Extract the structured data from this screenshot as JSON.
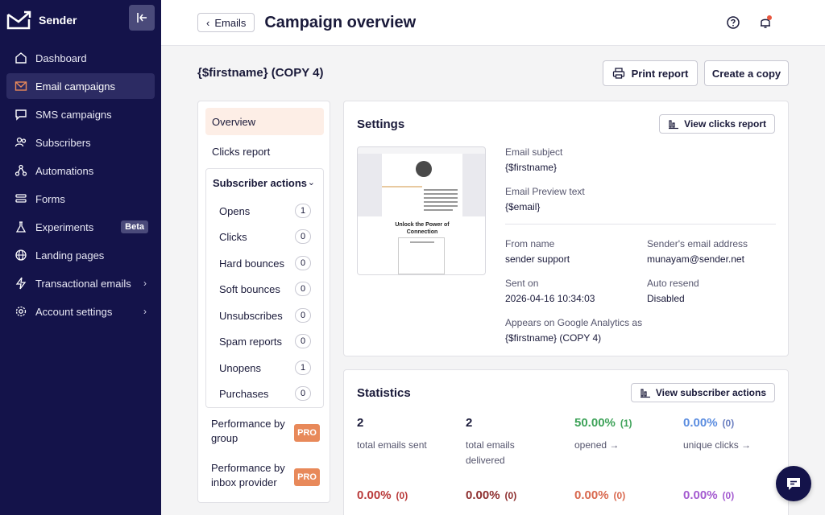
{
  "sidebar": {
    "brand": "Sender",
    "items": [
      {
        "label": "Dashboard",
        "icon": "home-icon"
      },
      {
        "label": "Email campaigns",
        "icon": "mail-icon"
      },
      {
        "label": "SMS campaigns",
        "icon": "chat-icon"
      },
      {
        "label": "Subscribers",
        "icon": "users-icon"
      },
      {
        "label": "Automations",
        "icon": "automation-icon"
      },
      {
        "label": "Forms",
        "icon": "forms-icon"
      },
      {
        "label": "Experiments",
        "icon": "flask-icon",
        "badge": "Beta"
      },
      {
        "label": "Landing pages",
        "icon": "globe-icon"
      },
      {
        "label": "Transactional emails",
        "icon": "bolt-icon"
      },
      {
        "label": "Account settings",
        "icon": "gear-icon"
      }
    ]
  },
  "header": {
    "back_label": "Emails",
    "title": "Campaign overview"
  },
  "campaign": {
    "name": "{$firstname} (COPY 4)",
    "print_label": "Print report",
    "copy_label": "Create a copy"
  },
  "submenu": {
    "overview": "Overview",
    "clicks_report": "Clicks report",
    "subscriber_actions_title": "Subscriber actions",
    "actions": [
      {
        "label": "Opens",
        "count": "1"
      },
      {
        "label": "Clicks",
        "count": "0"
      },
      {
        "label": "Hard bounces",
        "count": "0"
      },
      {
        "label": "Soft bounces",
        "count": "0"
      },
      {
        "label": "Unsubscribes",
        "count": "0"
      },
      {
        "label": "Spam reports",
        "count": "0"
      },
      {
        "label": "Unopens",
        "count": "1"
      },
      {
        "label": "Purchases",
        "count": "0"
      }
    ],
    "perf_group_line1": "Performance by",
    "perf_group_line2": "group",
    "perf_inbox_line1": "Performance by",
    "perf_inbox_line2": "inbox provider",
    "pro_badge": "PRO"
  },
  "settings": {
    "title": "Settings",
    "view_clicks_label": "View clicks report",
    "preview_heading_line1": "Unlock the Power of",
    "preview_heading_line2": "Connection",
    "email_subject_label": "Email subject",
    "email_subject": "{$firstname}",
    "preview_text_label": "Email Preview text",
    "preview_text": "{$email}",
    "from_name_label": "From name",
    "from_name": "sender support",
    "sender_email_label": "Sender's email address",
    "sender_email": "munayam@sender.net",
    "sent_on_label": "Sent on",
    "sent_on": "2026-04-16 10:34:03",
    "auto_resend_label": "Auto resend",
    "auto_resend": "Disabled",
    "ga_label": "Appears on Google Analytics as",
    "ga_value": "{$firstname} (COPY 4)"
  },
  "statistics": {
    "title": "Statistics",
    "view_actions_label": "View subscriber actions",
    "row1": [
      {
        "value": "2",
        "paren": "",
        "label_line1": "total emails sent",
        "label_line2": "",
        "color": "#1a1a3a"
      },
      {
        "value": "2",
        "paren": "",
        "label_line1": "total emails",
        "label_line2": "delivered",
        "color": "#1a1a3a"
      },
      {
        "value": "50.00%",
        "paren": "(1)",
        "label_line1": "opened →",
        "label_line2": "",
        "color": "#3fa35a"
      },
      {
        "value": "0.00%",
        "paren": "(0)",
        "label_line1": "unique clicks →",
        "label_line2": "",
        "color": "#5b8de0"
      }
    ],
    "row2": [
      {
        "value": "0.00%",
        "paren": "(0)",
        "color": "#b93a3a"
      },
      {
        "value": "0.00%",
        "paren": "(0)",
        "color": "#8e2f2f"
      },
      {
        "value": "0.00%",
        "paren": "(0)",
        "color": "#d9694f"
      },
      {
        "value": "0.00%",
        "paren": "(0)",
        "color": "#a45bd0"
      }
    ]
  }
}
